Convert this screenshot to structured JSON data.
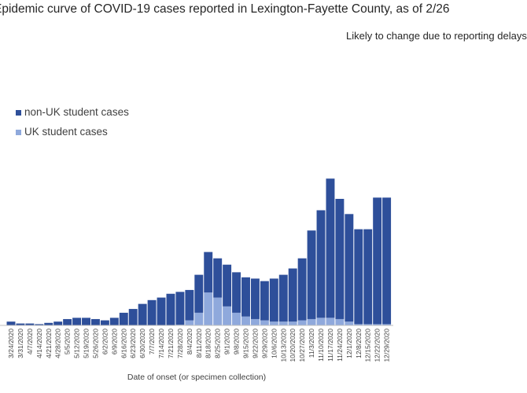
{
  "chart_data": {
    "type": "bar",
    "stacked": true,
    "title": "Epidemic curve of COVID-19 cases reported in Lexington-Fayette County, as of 2/26",
    "note": "Likely to change due to reporting delays",
    "xlabel": "Date of onset (or specimen collection)",
    "ylabel": "",
    "grid": false,
    "legend_position": "upper-left",
    "colors": {
      "non_uk": "#2e4f9a",
      "uk": "#8fa9dc",
      "axis": "#bfbfbf",
      "text": "#404040"
    },
    "categories": [
      "3/24/2020",
      "3/31/2020",
      "4/7/2020",
      "4/14/2020",
      "4/21/2020",
      "4/28/2020",
      "5/5/2020",
      "5/12/2020",
      "5/19/2020",
      "5/26/2020",
      "6/2/2020",
      "6/9/2020",
      "6/16/2020",
      "6/23/2020",
      "6/30/2020",
      "7/7/2020",
      "7/14/2020",
      "7/21/2020",
      "7/28/2020",
      "8/4/2020",
      "8/11/2020",
      "8/18/2020",
      "8/25/2020",
      "9/1/2020",
      "9/8/2020",
      "9/15/2020",
      "9/22/2020",
      "9/29/2020",
      "10/6/2020",
      "10/13/2020",
      "10/20/2020",
      "10/27/2020",
      "11/3/2020",
      "11/10/2020",
      "11/17/2020",
      "11/24/2020",
      "12/1/2020",
      "12/8/2020",
      "12/15/2020",
      "12/22/2020",
      "12/29/2020"
    ],
    "series": [
      {
        "name": "non-UK student cases",
        "values": [
          6,
          3,
          3,
          2,
          4,
          6,
          10,
          12,
          12,
          10,
          8,
          12,
          20,
          26,
          34,
          40,
          44,
          50,
          52,
          48,
          60,
          64,
          62,
          66,
          64,
          62,
          64,
          62,
          68,
          74,
          84,
          98,
          140,
          170,
          220,
          190,
          170,
          150,
          150,
          200,
          200
        ]
      },
      {
        "name": "UK student cases",
        "values": [
          0,
          0,
          0,
          0,
          0,
          0,
          0,
          0,
          0,
          0,
          0,
          0,
          0,
          0,
          0,
          0,
          0,
          0,
          1,
          8,
          20,
          52,
          44,
          30,
          20,
          14,
          10,
          8,
          6,
          6,
          6,
          8,
          10,
          12,
          12,
          10,
          6,
          2,
          2,
          2,
          2
        ]
      }
    ],
    "ylim": [
      0,
      400
    ]
  }
}
